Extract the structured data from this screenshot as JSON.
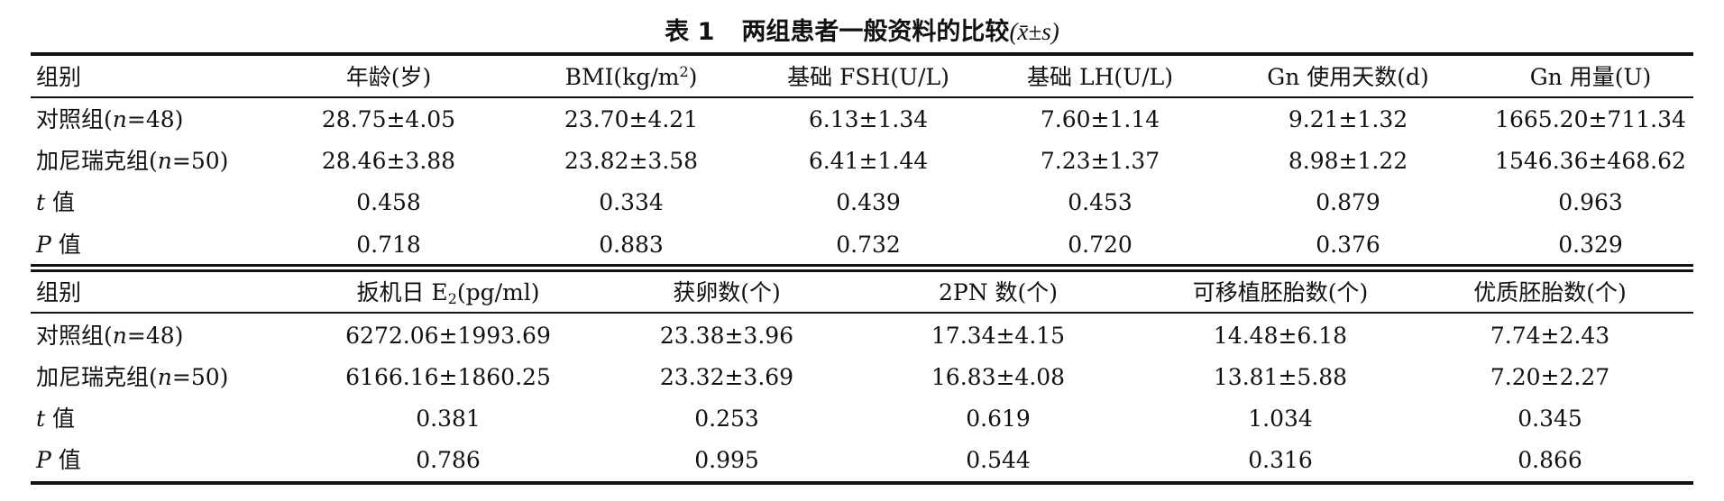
{
  "caption": {
    "number": "表 1",
    "title": "两组患者一般资料的比较",
    "stat": "(x̄±s)"
  },
  "table1": {
    "headers": {
      "group": "组别",
      "age": "年龄(岁)",
      "bmi": "BMI(kg/m",
      "bmi_sup": "2",
      "bmi_close": ")",
      "fsh": "基础 FSH(U/L)",
      "lh": "基础 LH(U/L)",
      "gn_days": "Gn 使用天数(d)",
      "gn_dose": "Gn 用量(U)"
    },
    "rows": [
      {
        "label": "对照组(",
        "n": "n",
        "label_tail": "=48)",
        "values": [
          "28.75±4.05",
          "23.70±4.21",
          "6.13±1.34",
          "7.60±1.14",
          "9.21±1.32",
          "1665.20±711.34"
        ]
      },
      {
        "label": "加尼瑞克组(",
        "n": "n",
        "label_tail": "=50)",
        "values": [
          "28.46±3.88",
          "23.82±3.58",
          "6.41±1.44",
          "7.23±1.37",
          "8.98±1.22",
          "1546.36±468.62"
        ]
      },
      {
        "sym": "t",
        "label": " 值",
        "values": [
          "0.458",
          "0.334",
          "0.439",
          "0.453",
          "0.879",
          "0.963"
        ]
      },
      {
        "sym": "P",
        "label": " 值",
        "values": [
          "0.718",
          "0.883",
          "0.732",
          "0.720",
          "0.376",
          "0.329"
        ]
      }
    ]
  },
  "table2": {
    "headers": {
      "group": "组别",
      "e2_pre": "扳机日 E",
      "e2_sub": "2",
      "e2_post": "(pg/ml)",
      "eggs": "获卵数(个)",
      "pn": "2PN 数(个)",
      "embryos": "可移植胚胎数(个)",
      "quality": "优质胚胎数(个)"
    },
    "rows": [
      {
        "label": "对照组(",
        "n": "n",
        "label_tail": "=48)",
        "values": [
          "6272.06±1993.69",
          "23.38±3.96",
          "17.34±4.15",
          "14.48±6.18",
          "7.74±2.43"
        ]
      },
      {
        "label": "加尼瑞克组(",
        "n": "n",
        "label_tail": "=50)",
        "values": [
          "6166.16±1860.25",
          "23.32±3.69",
          "16.83±4.08",
          "13.81±5.88",
          "7.20±2.27"
        ]
      },
      {
        "sym": "t",
        "label": " 值",
        "values": [
          "0.381",
          "0.253",
          "0.619",
          "1.034",
          "0.345"
        ]
      },
      {
        "sym": "P",
        "label": " 值",
        "values": [
          "0.786",
          "0.995",
          "0.544",
          "0.316",
          "0.866"
        ]
      }
    ]
  }
}
